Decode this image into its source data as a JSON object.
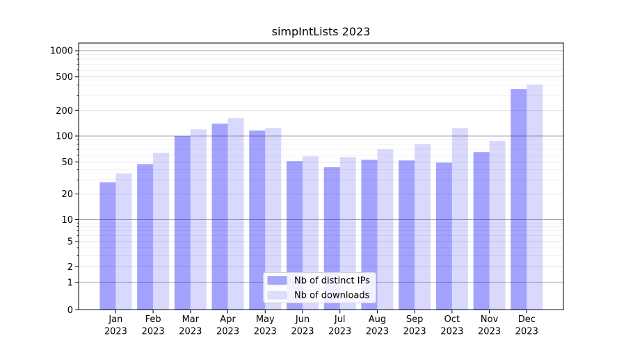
{
  "title": "simpIntLists 2023",
  "chart_data": {
    "type": "bar",
    "title": "simpIntLists 2023",
    "yscale": "symlog",
    "xlabel": "",
    "ylabel": "",
    "year": "2023",
    "months": [
      "Jan",
      "Feb",
      "Mar",
      "Apr",
      "May",
      "Jun",
      "Jul",
      "Aug",
      "Sep",
      "Oct",
      "Nov",
      "Dec"
    ],
    "categories": [
      "Jan 2023",
      "Feb 2023",
      "Mar 2023",
      "Apr 2023",
      "May 2023",
      "Jun 2023",
      "Jul 2023",
      "Aug 2023",
      "Sep 2023",
      "Oct 2023",
      "Nov 2023",
      "Dec 2023"
    ],
    "series": [
      {
        "name": "Nb of distinct IPs",
        "key": "distinct-ips",
        "fill": "rgba(0,0,250,0.36)",
        "legend_fill": "#a5a5fb",
        "values": [
          28,
          47,
          100,
          140,
          116,
          51,
          43,
          53,
          52,
          49,
          65,
          360
        ]
      },
      {
        "name": "Nb of downloads",
        "key": "downloads",
        "fill": "rgba(0,0,250,0.15)",
        "legend_fill": "#dcdcfd",
        "values": [
          36,
          64,
          120,
          163,
          125,
          58,
          57,
          70,
          80,
          124,
          88,
          405
        ]
      }
    ],
    "y_ticks": [
      0,
      1,
      2,
      5,
      10,
      20,
      50,
      100,
      200,
      500,
      1000
    ],
    "y_emphasis_lines": [
      1,
      10,
      100,
      1000
    ],
    "ylim": [
      0,
      1236
    ],
    "grid": true,
    "legend_position": "bottom-center",
    "colors": {
      "grid_major_dark": "#a3a3a3",
      "grid_labeled": "#e2e2e2",
      "grid_minor": "#f0f0f0",
      "axis": "#000000",
      "legend_border": "#cccccc"
    }
  }
}
